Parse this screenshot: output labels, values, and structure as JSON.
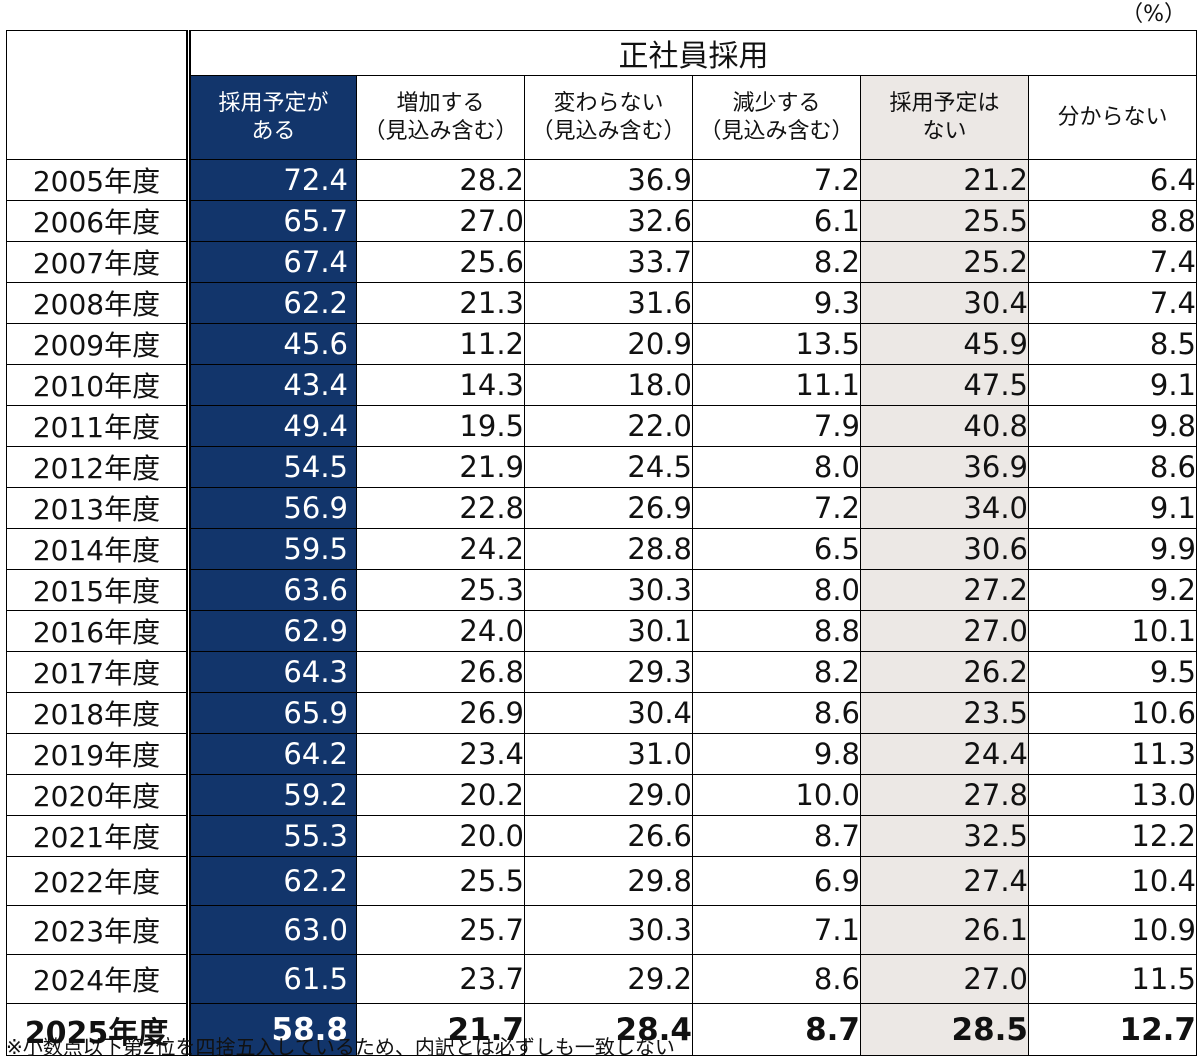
{
  "unit": "（%）",
  "chart_data": {
    "type": "table",
    "group_header": "正社員採用",
    "columns": [
      {
        "key": "plan",
        "label_lines": [
          "採用予定が",
          "ある"
        ],
        "style": "dark"
      },
      {
        "key": "increase",
        "label_lines": [
          "増加する",
          "（見込み含む）"
        ],
        "style": "plain"
      },
      {
        "key": "same",
        "label_lines": [
          "変わらない",
          "（見込み含む）"
        ],
        "style": "plain"
      },
      {
        "key": "decrease",
        "label_lines": [
          "減少する",
          "（見込み含む）"
        ],
        "style": "plain"
      },
      {
        "key": "noplan",
        "label_lines": [
          "採用予定は",
          "ない"
        ],
        "style": "gray"
      },
      {
        "key": "unknown",
        "label_lines": [
          "分からない"
        ],
        "style": "plain"
      }
    ],
    "rows": [
      {
        "year": "2005年度",
        "values": [
          "72.4",
          "28.2",
          "36.9",
          "7.2",
          "21.2",
          "6.4"
        ]
      },
      {
        "year": "2006年度",
        "values": [
          "65.7",
          "27.0",
          "32.6",
          "6.1",
          "25.5",
          "8.8"
        ]
      },
      {
        "year": "2007年度",
        "values": [
          "67.4",
          "25.6",
          "33.7",
          "8.2",
          "25.2",
          "7.4"
        ]
      },
      {
        "year": "2008年度",
        "values": [
          "62.2",
          "21.3",
          "31.6",
          "9.3",
          "30.4",
          "7.4"
        ]
      },
      {
        "year": "2009年度",
        "values": [
          "45.6",
          "11.2",
          "20.9",
          "13.5",
          "45.9",
          "8.5"
        ]
      },
      {
        "year": "2010年度",
        "values": [
          "43.4",
          "14.3",
          "18.0",
          "11.1",
          "47.5",
          "9.1"
        ]
      },
      {
        "year": "2011年度",
        "values": [
          "49.4",
          "19.5",
          "22.0",
          "7.9",
          "40.8",
          "9.8"
        ]
      },
      {
        "year": "2012年度",
        "values": [
          "54.5",
          "21.9",
          "24.5",
          "8.0",
          "36.9",
          "8.6"
        ]
      },
      {
        "year": "2013年度",
        "values": [
          "56.9",
          "22.8",
          "26.9",
          "7.2",
          "34.0",
          "9.1"
        ]
      },
      {
        "year": "2014年度",
        "values": [
          "59.5",
          "24.2",
          "28.8",
          "6.5",
          "30.6",
          "9.9"
        ]
      },
      {
        "year": "2015年度",
        "values": [
          "63.6",
          "25.3",
          "30.3",
          "8.0",
          "27.2",
          "9.2"
        ]
      },
      {
        "year": "2016年度",
        "values": [
          "62.9",
          "24.0",
          "30.1",
          "8.8",
          "27.0",
          "10.1"
        ]
      },
      {
        "year": "2017年度",
        "values": [
          "64.3",
          "26.8",
          "29.3",
          "8.2",
          "26.2",
          "9.5"
        ]
      },
      {
        "year": "2018年度",
        "values": [
          "65.9",
          "26.9",
          "30.4",
          "8.6",
          "23.5",
          "10.6"
        ]
      },
      {
        "year": "2019年度",
        "values": [
          "64.2",
          "23.4",
          "31.0",
          "9.8",
          "24.4",
          "11.3"
        ]
      },
      {
        "year": "2020年度",
        "values": [
          "59.2",
          "20.2",
          "29.0",
          "10.0",
          "27.8",
          "13.0"
        ]
      },
      {
        "year": "2021年度",
        "values": [
          "55.3",
          "20.0",
          "26.6",
          "8.7",
          "32.5",
          "12.2"
        ]
      },
      {
        "year": "2022年度",
        "values": [
          "62.2",
          "25.5",
          "29.8",
          "6.9",
          "27.4",
          "10.4"
        ],
        "tall": true
      },
      {
        "year": "2023年度",
        "values": [
          "63.0",
          "25.7",
          "30.3",
          "7.1",
          "26.1",
          "10.9"
        ],
        "tall": true
      },
      {
        "year": "2024年度",
        "values": [
          "61.5",
          "23.7",
          "29.2",
          "8.6",
          "27.0",
          "11.5"
        ],
        "tall": true
      },
      {
        "year": "2025年度",
        "values": [
          "58.8",
          "21.7",
          "28.4",
          "8.7",
          "28.5",
          "12.7"
        ],
        "total": true
      }
    ],
    "colors": {
      "dark": "#12356b",
      "gray": "#ece8e5"
    }
  },
  "note": "※小数点以下第2位を四捨五入しているため、内訳とは必ずしも一致しない"
}
